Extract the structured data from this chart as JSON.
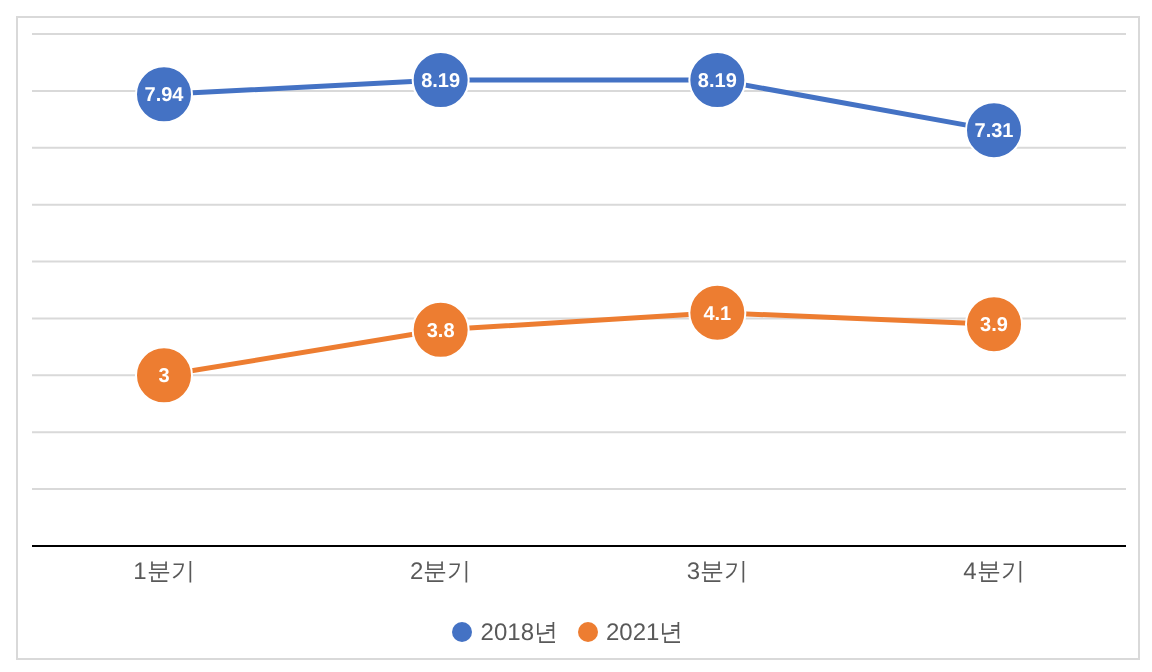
{
  "chart_data": {
    "type": "line",
    "categories": [
      "1분기",
      "2분기",
      "3분기",
      "4분기"
    ],
    "series": [
      {
        "name": "2018년",
        "color": "#4472c4",
        "values": [
          7.94,
          8.19,
          8.19,
          7.31
        ]
      },
      {
        "name": "2021년",
        "color": "#ed7d31",
        "values": [
          3,
          3.8,
          4.1,
          3.9
        ]
      }
    ],
    "ylim": [
      0,
      9
    ],
    "grid": "y",
    "legend": "bottom",
    "tick_labels": "x",
    "marker": "circle",
    "line_style": "solid",
    "data_labels": true
  }
}
